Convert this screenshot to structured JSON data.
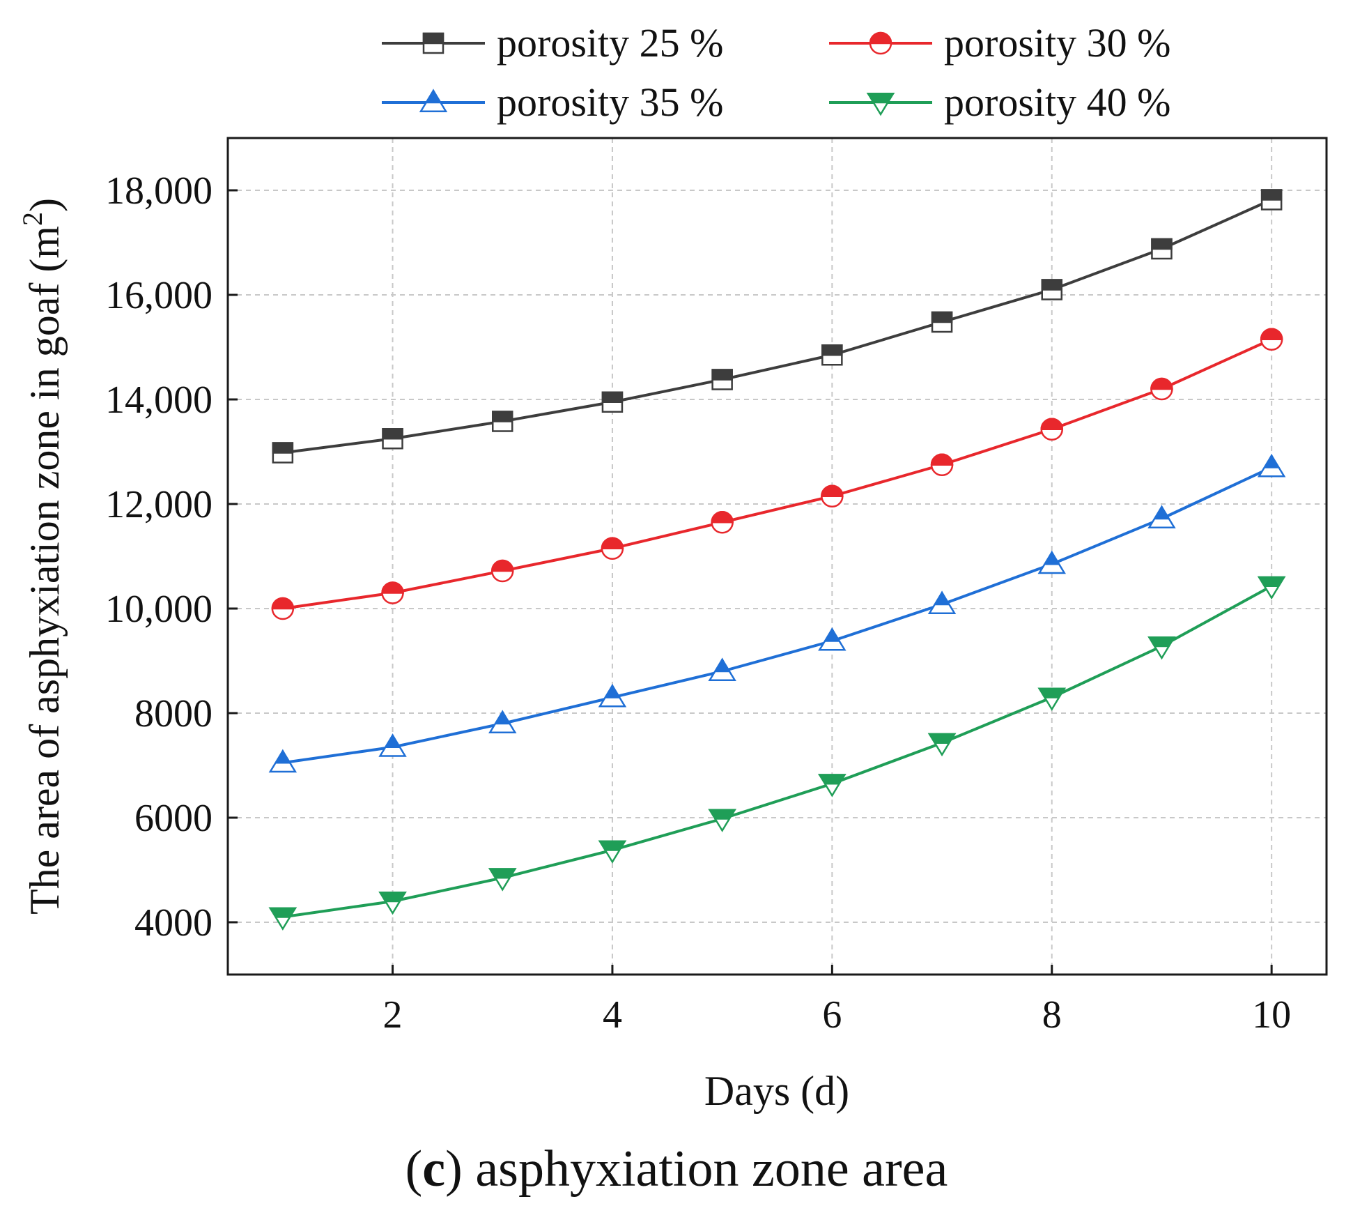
{
  "chart_data": {
    "type": "line",
    "title": "",
    "xlabel": "Days (d)",
    "ylabel": "The area of asphyxiation zone in goaf (m",
    "ylabel_superscript": "2",
    "ylabel_close": ")",
    "xlim": [
      0.5,
      10.5
    ],
    "ylim": [
      3000,
      19000
    ],
    "xticks": [
      2,
      4,
      6,
      8,
      10
    ],
    "xtick_labels": [
      "2",
      "4",
      "6",
      "8",
      "10"
    ],
    "yticks": [
      4000,
      6000,
      8000,
      10000,
      12000,
      14000,
      16000,
      18000
    ],
    "ytick_labels": [
      "4000",
      "6000",
      "8000",
      "10,000",
      "12,000",
      "14,000",
      "16,000",
      "18,000"
    ],
    "grid": true,
    "legend_position": "top",
    "x": [
      1,
      2,
      3,
      4,
      5,
      6,
      7,
      8,
      9,
      10
    ],
    "series": [
      {
        "name": "porosity 25 %",
        "marker": "square",
        "color": "#3d3d3d",
        "values": [
          12980,
          13250,
          13580,
          13950,
          14380,
          14850,
          15480,
          16100,
          16880,
          17820
        ]
      },
      {
        "name": "porosity 30 %",
        "marker": "circle",
        "color": "#e8272c",
        "values": [
          10000,
          10300,
          10720,
          11150,
          11650,
          12150,
          12750,
          13430,
          14200,
          15150
        ]
      },
      {
        "name": "porosity 35 %",
        "marker": "triangle-up",
        "color": "#1f6fd6",
        "values": [
          7050,
          7350,
          7800,
          8300,
          8800,
          9380,
          10080,
          10850,
          11720,
          12700
        ]
      },
      {
        "name": "porosity 40 %",
        "marker": "triangle-down",
        "color": "#1f9e57",
        "values": [
          4100,
          4400,
          4850,
          5380,
          5980,
          6650,
          7430,
          8300,
          9280,
          10430
        ]
      }
    ]
  },
  "caption": {
    "letter": "c",
    "text": " asphyxiation zone area"
  }
}
